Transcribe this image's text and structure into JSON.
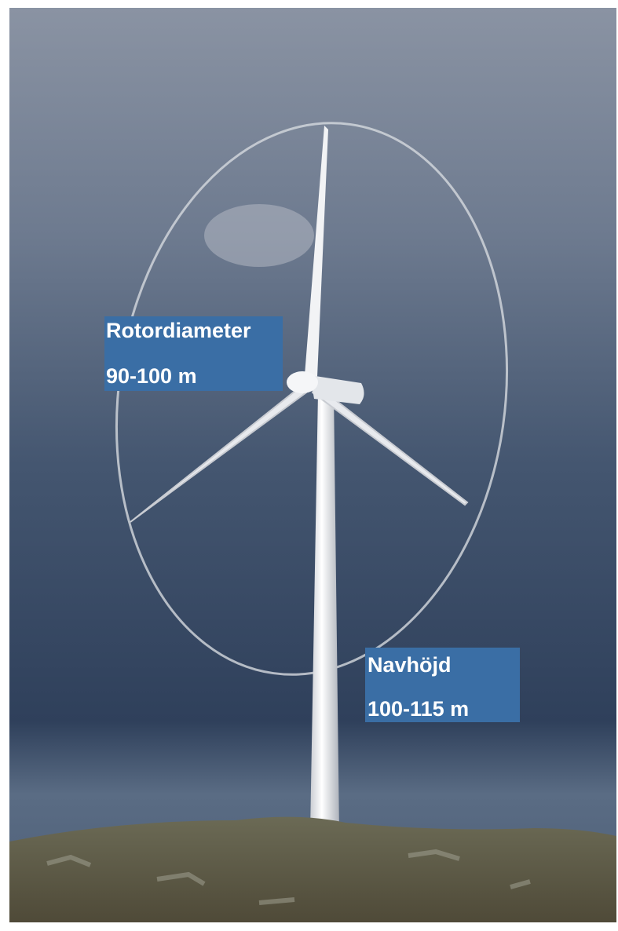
{
  "labels": [
    {
      "title": "Rotordiameter",
      "value": "90-100 m"
    },
    {
      "title": "Navhöjd",
      "value": "100-115 m"
    }
  ]
}
